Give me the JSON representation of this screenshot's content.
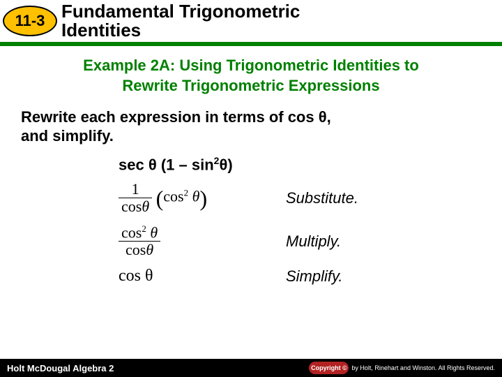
{
  "header": {
    "lesson_number": "11-3",
    "chapter_title_line1": "Fundamental Trigonometric",
    "chapter_title_line2": "Identities"
  },
  "example": {
    "title_line1": "Example 2A: Using Trigonometric Identities to",
    "title_line2": "Rewrite Trigonometric Expressions",
    "instruction_line1": "Rewrite each expression in terms of cos θ,",
    "instruction_line2": "and simplify.",
    "given": {
      "pre": "sec θ (1 – sin",
      "sup": "2",
      "post": "θ)"
    }
  },
  "steps": [
    {
      "numerator": "1",
      "denom_pre": "cos",
      "denom_theta": "θ",
      "paren_pre": "cos",
      "paren_sup": "2",
      "paren_theta": " θ",
      "annotation": "Substitute."
    },
    {
      "num_pre": "cos",
      "num_sup": "2",
      "num_theta": " θ",
      "denom_pre": "cos",
      "denom_theta": "θ",
      "annotation": "Multiply."
    },
    {
      "result": "cos θ",
      "annotation": "Simplify."
    }
  ],
  "footer": {
    "book": "Holt McDougal Algebra 2",
    "copyright_badge": "Copyright ©",
    "copyright_text": "by Holt, Rinehart and Winston. All Rights Reserved."
  },
  "colors": {
    "accent_green": "#008000",
    "badge_yellow": "#ffc000",
    "footer_bg": "#000000",
    "copyright_red": "#b22222"
  }
}
